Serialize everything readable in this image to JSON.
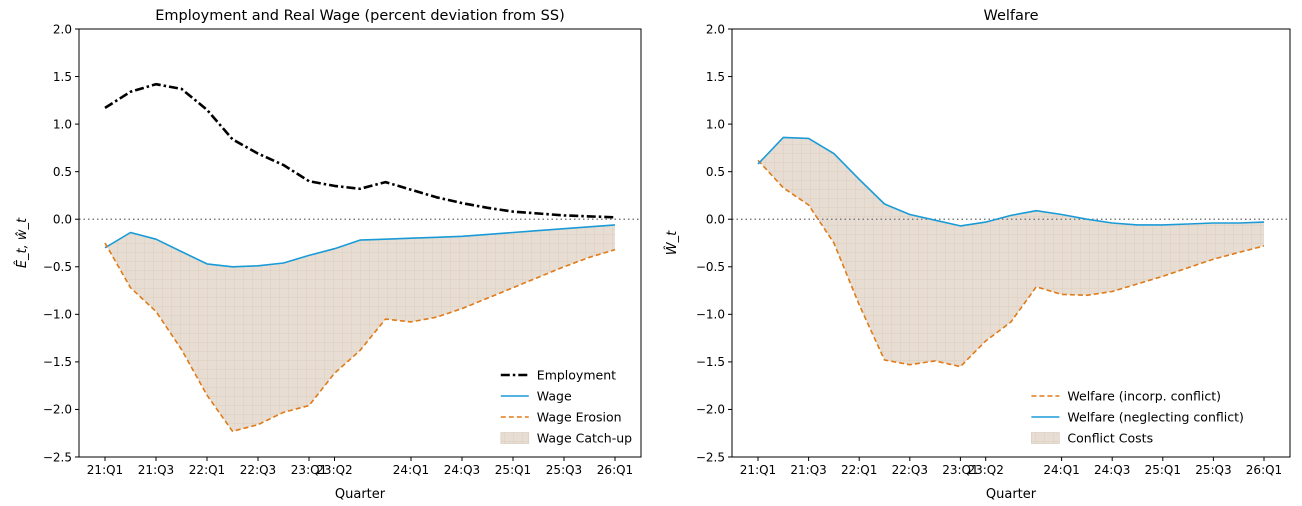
{
  "chart_data": [
    {
      "type": "line",
      "title": "Employment and Real Wage (percent deviation from SS)",
      "xlabel": "Quarter",
      "ylabel": "Ê_t, ŵ_t",
      "ylim": [
        -2.5,
        2.0
      ],
      "yticks": [
        "2.0",
        "1.5",
        "1.0",
        "0.5",
        "0.0",
        "−0.5",
        "−1.0",
        "−1.5",
        "−2.0",
        "−2.5"
      ],
      "xtick_labels": [
        "21:Q1",
        "21:Q3",
        "22:Q1",
        "22:Q3",
        "23:Q1",
        "23:Q2",
        "24:Q1",
        "24:Q3",
        "25:Q1",
        "25:Q3",
        "26:Q1"
      ],
      "zero_line": true,
      "legend_position": "lower-right",
      "x_count": 21,
      "series": [
        {
          "name": "Employment",
          "style": "dashdot",
          "color": "#000000",
          "values": [
            1.17,
            1.34,
            1.42,
            1.37,
            1.15,
            0.84,
            0.69,
            0.57,
            0.4,
            0.35,
            0.32,
            0.39,
            0.31,
            0.23,
            0.17,
            0.12,
            0.08,
            0.06,
            0.04,
            0.03,
            0.02
          ]
        },
        {
          "name": "Wage",
          "style": "solid",
          "color": "#1a9bd7",
          "values": [
            -0.3,
            -0.14,
            -0.21,
            -0.34,
            -0.47,
            -0.5,
            -0.49,
            -0.46,
            -0.38,
            -0.31,
            -0.22,
            -0.21,
            -0.2,
            -0.19,
            -0.18,
            -0.16,
            -0.14,
            -0.12,
            -0.1,
            -0.08,
            -0.06
          ]
        },
        {
          "name": "Wage Erosion",
          "style": "dashed",
          "color": "#e07b18",
          "values": [
            -0.25,
            -0.72,
            -0.97,
            -1.37,
            -1.85,
            -2.23,
            -2.16,
            -2.03,
            -1.96,
            -1.62,
            -1.38,
            -1.05,
            -1.08,
            -1.03,
            -0.94,
            -0.83,
            -0.72,
            -0.61,
            -0.5,
            -0.4,
            -0.32
          ]
        }
      ],
      "fill": {
        "name": "Wage Catch-up",
        "between": [
          "Wage",
          "Wage Erosion"
        ],
        "color": "#e8ddd2"
      }
    },
    {
      "type": "line",
      "title": "Welfare",
      "xlabel": "Quarter",
      "ylabel": "Ŵ_t",
      "ylim": [
        -2.5,
        2.0
      ],
      "yticks": [
        "2.0",
        "1.5",
        "1.0",
        "0.5",
        "0.0",
        "−0.5",
        "−1.0",
        "−1.5",
        "−2.0",
        "−2.5"
      ],
      "xtick_labels": [
        "21:Q1",
        "21:Q3",
        "22:Q1",
        "22:Q3",
        "23:Q1",
        "23:Q2",
        "24:Q1",
        "24:Q3",
        "25:Q1",
        "25:Q3",
        "26:Q1"
      ],
      "zero_line": true,
      "legend_position": "lower-right",
      "x_count": 21,
      "series": [
        {
          "name": "Welfare (incorp. conflict)",
          "style": "dashed",
          "color": "#e07b18",
          "values": [
            0.62,
            0.33,
            0.15,
            -0.25,
            -0.9,
            -1.48,
            -1.53,
            -1.49,
            -1.55,
            -1.28,
            -1.08,
            -0.71,
            -0.79,
            -0.8,
            -0.76,
            -0.68,
            -0.6,
            -0.51,
            -0.42,
            -0.35,
            -0.28
          ]
        },
        {
          "name": "Welfare (neglecting conflict)",
          "style": "solid",
          "color": "#1a9bd7",
          "values": [
            0.58,
            0.86,
            0.85,
            0.69,
            0.42,
            0.16,
            0.05,
            -0.01,
            -0.07,
            -0.03,
            0.04,
            0.09,
            0.05,
            0.0,
            -0.04,
            -0.06,
            -0.06,
            -0.05,
            -0.04,
            -0.04,
            -0.03
          ]
        }
      ],
      "fill": {
        "name": "Conflict Costs",
        "between": [
          "Welfare (neglecting conflict)",
          "Welfare (incorp. conflict)"
        ],
        "color": "#e8ddd2"
      }
    }
  ]
}
